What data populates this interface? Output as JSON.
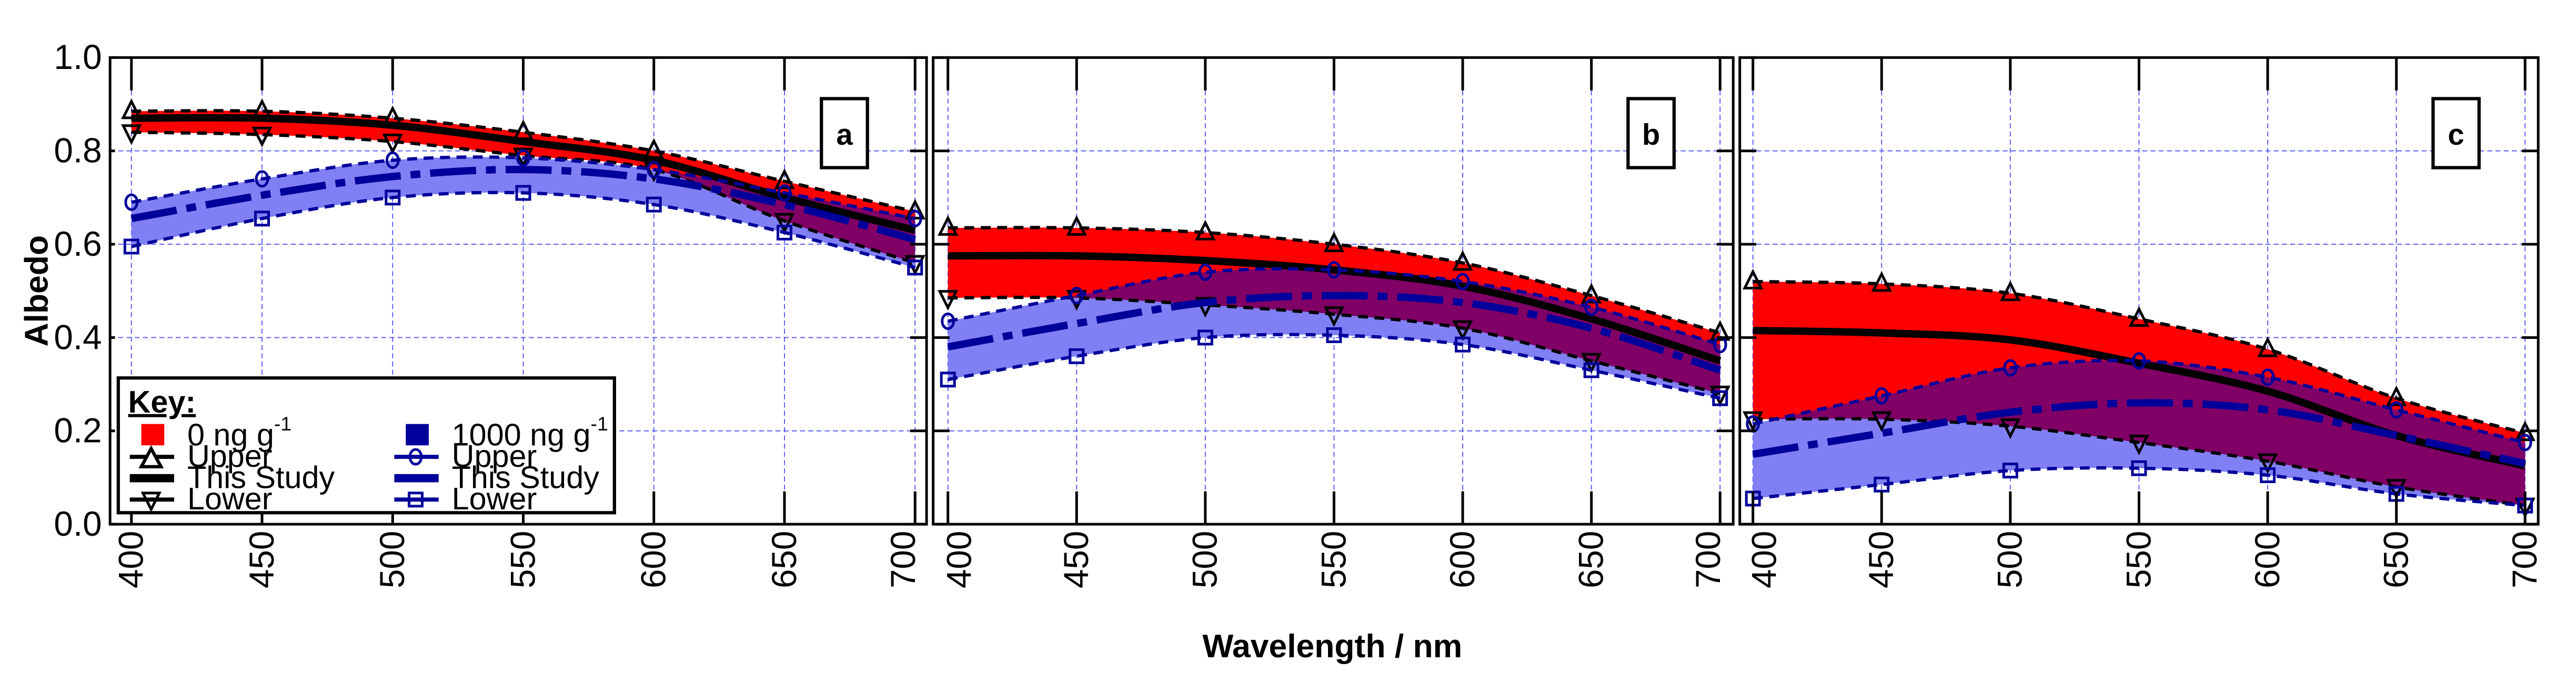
{
  "chart_data": [
    {
      "type": "area",
      "panel_label": "a",
      "x": [
        400,
        450,
        500,
        550,
        600,
        650,
        700
      ],
      "series": [
        {
          "name": "0 ng g-1 Upper",
          "values": [
            0.885,
            0.885,
            0.87,
            0.84,
            0.8,
            0.735,
            0.67
          ]
        },
        {
          "name": "0 ng g-1 This Study",
          "values": [
            0.87,
            0.87,
            0.855,
            0.82,
            0.78,
            0.7,
            0.63
          ]
        },
        {
          "name": "0 ng g-1 Lower",
          "values": [
            0.84,
            0.835,
            0.82,
            0.79,
            0.76,
            0.65,
            0.56
          ]
        },
        {
          "name": "1000 ng g-1 Upper",
          "values": [
            0.69,
            0.74,
            0.78,
            0.785,
            0.76,
            0.71,
            0.655
          ]
        },
        {
          "name": "1000 ng g-1 This Study",
          "values": [
            0.655,
            0.705,
            0.745,
            0.76,
            0.74,
            0.685,
            0.61
          ]
        },
        {
          "name": "1000 ng g-1 Lower",
          "values": [
            0.595,
            0.655,
            0.7,
            0.71,
            0.685,
            0.625,
            0.55
          ]
        }
      ]
    },
    {
      "type": "area",
      "panel_label": "b",
      "x": [
        400,
        450,
        500,
        550,
        600,
        650,
        700
      ],
      "series": [
        {
          "name": "0 ng g-1 Upper",
          "values": [
            0.635,
            0.635,
            0.625,
            0.6,
            0.56,
            0.49,
            0.41
          ]
        },
        {
          "name": "0 ng g-1 This Study",
          "values": [
            0.575,
            0.575,
            0.565,
            0.545,
            0.51,
            0.44,
            0.35
          ]
        },
        {
          "name": "0 ng g-1 Lower",
          "values": [
            0.485,
            0.485,
            0.47,
            0.45,
            0.42,
            0.35,
            0.28
          ]
        },
        {
          "name": "1000 ng g-1 Upper",
          "values": [
            0.435,
            0.49,
            0.54,
            0.545,
            0.52,
            0.465,
            0.385
          ]
        },
        {
          "name": "1000 ng g-1 This Study",
          "values": [
            0.38,
            0.43,
            0.475,
            0.49,
            0.475,
            0.42,
            0.33
          ]
        },
        {
          "name": "1000 ng g-1 Lower",
          "values": [
            0.31,
            0.36,
            0.4,
            0.405,
            0.385,
            0.33,
            0.27
          ]
        }
      ]
    },
    {
      "type": "area",
      "panel_label": "c",
      "x": [
        400,
        450,
        500,
        550,
        600,
        650,
        700
      ],
      "series": [
        {
          "name": "0 ng g-1 Upper",
          "values": [
            0.52,
            0.515,
            0.495,
            0.44,
            0.375,
            0.27,
            0.195
          ]
        },
        {
          "name": "0 ng g-1 This Study",
          "values": [
            0.415,
            0.41,
            0.395,
            0.345,
            0.285,
            0.19,
            0.125
          ]
        },
        {
          "name": "0 ng g-1 Lower",
          "values": [
            0.225,
            0.225,
            0.21,
            0.175,
            0.135,
            0.08,
            0.04
          ]
        },
        {
          "name": "1000 ng g-1 Upper",
          "values": [
            0.215,
            0.275,
            0.335,
            0.35,
            0.315,
            0.245,
            0.175
          ]
        },
        {
          "name": "1000 ng g-1 This Study",
          "values": [
            0.15,
            0.195,
            0.24,
            0.26,
            0.245,
            0.19,
            0.13
          ]
        },
        {
          "name": "1000 ng g-1 Lower",
          "values": [
            0.055,
            0.085,
            0.115,
            0.12,
            0.105,
            0.065,
            0.04
          ]
        }
      ]
    }
  ],
  "axes": {
    "xlabel": "Wavelength / nm",
    "ylabel": "Albedo",
    "xlim": [
      400,
      700
    ],
    "ylim": [
      0,
      1.0
    ],
    "x_ticks": [
      "400",
      "450",
      "500",
      "550",
      "600",
      "650",
      "700"
    ],
    "y_ticks": [
      "0.0",
      "0.2",
      "0.4",
      "0.6",
      "0.8",
      "1.0"
    ],
    "grid": true
  },
  "legend": {
    "placement": "bottom-left of panel a",
    "title": "Key:",
    "group1": {
      "label": "0 ng g",
      "sup": "-1",
      "upper": "Upper",
      "mid": "This Study",
      "lower": "Lower"
    },
    "group2": {
      "label": "1000 ng g",
      "sup": "-1",
      "upper": "Upper",
      "mid": "This Study",
      "lower": "Lower"
    }
  },
  "colors": {
    "clean_fill": "#ff0000",
    "bc_fill": "#8080f4",
    "overlap_fill": "#800066",
    "clean_line": "#000000",
    "bc_line": "#00009a",
    "grid": "#5555ff"
  }
}
